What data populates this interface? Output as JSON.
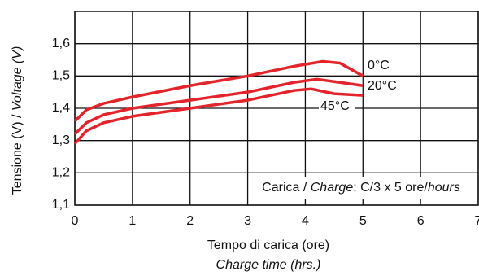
{
  "chart_data": {
    "type": "line",
    "y_label_parts": [
      "Tensione (V) / ",
      "Voltage (V)"
    ],
    "x_label": "Tempo di carica (ore)",
    "x_label_en": "Charge time (hrs.)",
    "annotation_parts": [
      "Carica / ",
      "Charge",
      ": C/3 x 5 ore/",
      "hours"
    ],
    "xlim": [
      0,
      7
    ],
    "xticks": [
      0,
      1,
      2,
      3,
      4,
      5,
      6,
      7
    ],
    "ylim": [
      1.1,
      1.7
    ],
    "yticks": [
      {
        "value": 1.1,
        "label": "1,1"
      },
      {
        "value": 1.2,
        "label": "1,2"
      },
      {
        "value": 1.3,
        "label": "1,3"
      },
      {
        "value": 1.4,
        "label": "1,4"
      },
      {
        "value": 1.5,
        "label": "1,5"
      },
      {
        "value": 1.6,
        "label": "1,6"
      }
    ],
    "grid": true,
    "series": [
      {
        "name": "0°C",
        "color": "#e3242b",
        "x": [
          0,
          0.2,
          0.5,
          1,
          2,
          3,
          3.8,
          4.3,
          4.6,
          5
        ],
        "values": [
          1.36,
          1.395,
          1.415,
          1.435,
          1.47,
          1.5,
          1.53,
          1.545,
          1.54,
          1.5
        ]
      },
      {
        "name": "20°C",
        "color": "#e3242b",
        "x": [
          0,
          0.2,
          0.5,
          1,
          2,
          3,
          3.8,
          4.2,
          4.6,
          5
        ],
        "values": [
          1.32,
          1.355,
          1.38,
          1.4,
          1.425,
          1.45,
          1.48,
          1.49,
          1.48,
          1.47
        ]
      },
      {
        "name": "45°C",
        "color": "#e3242b",
        "x": [
          0,
          0.2,
          0.5,
          1,
          2,
          3,
          3.8,
          4.1,
          4.5,
          5
        ],
        "values": [
          1.29,
          1.33,
          1.355,
          1.375,
          1.4,
          1.425,
          1.455,
          1.46,
          1.445,
          1.44
        ]
      }
    ]
  }
}
